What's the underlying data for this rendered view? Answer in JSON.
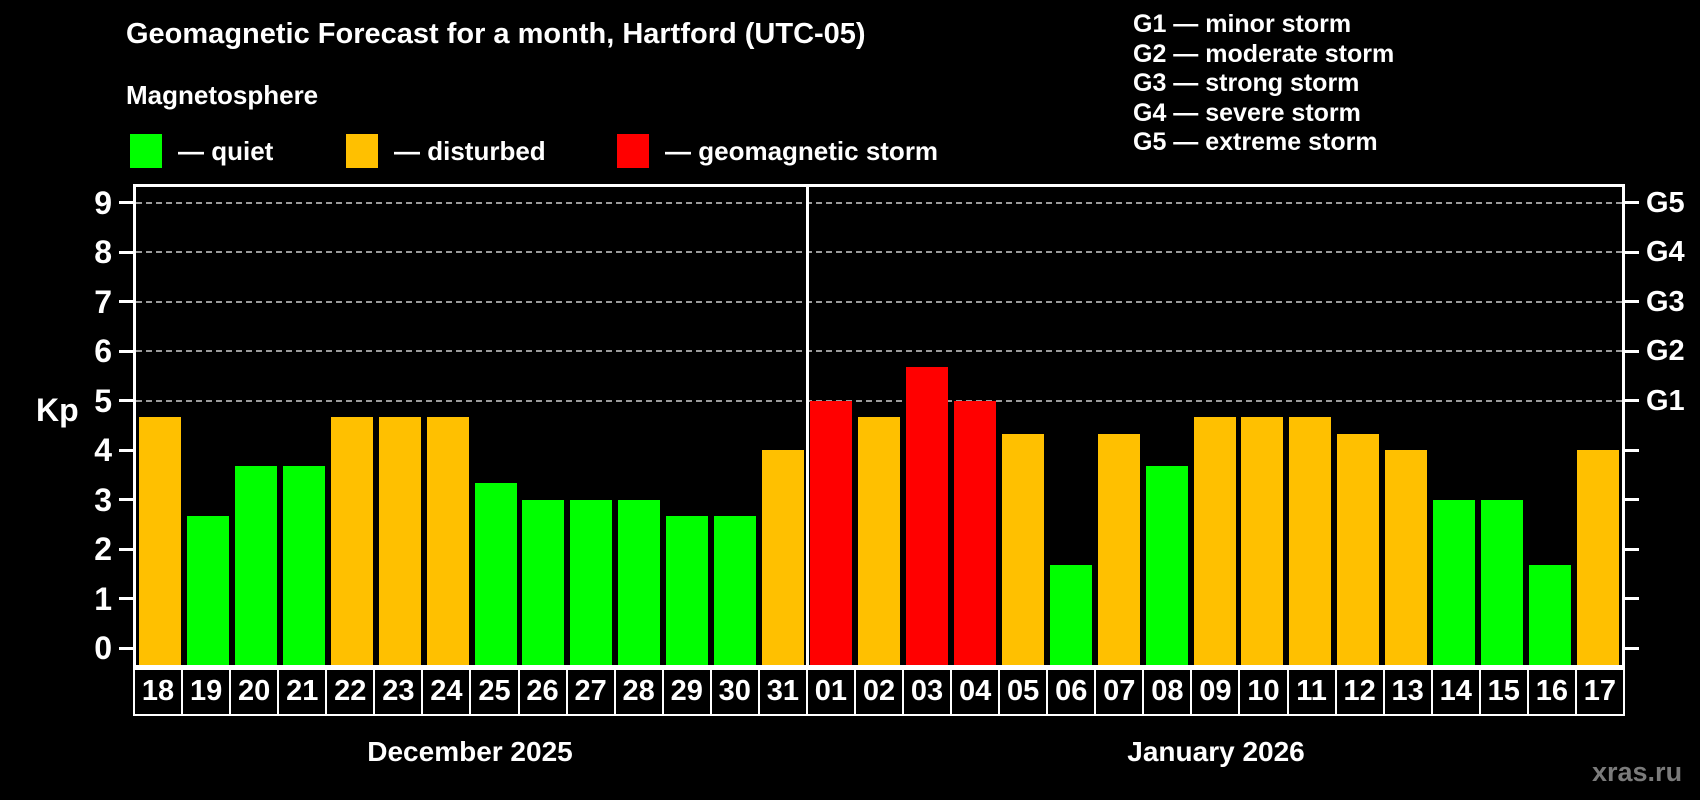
{
  "title": "Geomagnetic Forecast for a month, Hartford (UTC-05)",
  "subtitle": "Magnetosphere",
  "legend": {
    "quiet": "— quiet",
    "disturbed": "— disturbed",
    "storm": "— geomagnetic storm"
  },
  "storm_scale": [
    "G1 — minor storm",
    "G2 — moderate storm",
    "G3 — strong storm",
    "G4 — severe storm",
    "G5 — extreme storm"
  ],
  "colors": {
    "quiet": "#00ff00",
    "disturbed": "#ffc000",
    "storm": "#ff0000",
    "grid": "#9c9c9c",
    "axis": "#ffffff",
    "watermark": "#7b7b7b"
  },
  "axis": {
    "kp_label": "Kp",
    "left_ticks": [
      0,
      1,
      2,
      3,
      4,
      5,
      6,
      7,
      8,
      9
    ],
    "grid_kp": [
      5,
      6,
      7,
      8,
      9
    ],
    "right_labels": [
      {
        "kp": 5,
        "label": "G1"
      },
      {
        "kp": 6,
        "label": "G2"
      },
      {
        "kp": 7,
        "label": "G3"
      },
      {
        "kp": 8,
        "label": "G4"
      },
      {
        "kp": 9,
        "label": "G5"
      }
    ]
  },
  "months": [
    {
      "label": "December 2025",
      "days": 14
    },
    {
      "label": "January 2026",
      "days": 17
    }
  ],
  "watermark": "xras.ru",
  "chart_data": {
    "type": "bar",
    "title": "Geomagnetic Forecast for a month, Hartford (UTC-05)",
    "xlabel": "",
    "ylabel": "Kp",
    "ylim": [
      0,
      9
    ],
    "grid": "dashed horizontal at Kp 5-9",
    "legend_position": "top-left",
    "month_split": 14,
    "categories": [
      "18",
      "19",
      "20",
      "21",
      "22",
      "23",
      "24",
      "25",
      "26",
      "27",
      "28",
      "29",
      "30",
      "31",
      "01",
      "02",
      "03",
      "04",
      "05",
      "06",
      "07",
      "08",
      "09",
      "10",
      "11",
      "12",
      "13",
      "14",
      "15",
      "16",
      "17"
    ],
    "bars": [
      {
        "date": "18",
        "month": "December 2025",
        "kp": 4.67,
        "level": "disturbed"
      },
      {
        "date": "19",
        "month": "December 2025",
        "kp": 2.67,
        "level": "quiet"
      },
      {
        "date": "20",
        "month": "December 2025",
        "kp": 3.67,
        "level": "quiet"
      },
      {
        "date": "21",
        "month": "December 2025",
        "kp": 3.67,
        "level": "quiet"
      },
      {
        "date": "22",
        "month": "December 2025",
        "kp": 4.67,
        "level": "disturbed"
      },
      {
        "date": "23",
        "month": "December 2025",
        "kp": 4.67,
        "level": "disturbed"
      },
      {
        "date": "24",
        "month": "December 2025",
        "kp": 4.67,
        "level": "disturbed"
      },
      {
        "date": "25",
        "month": "December 2025",
        "kp": 3.33,
        "level": "quiet"
      },
      {
        "date": "26",
        "month": "December 2025",
        "kp": 3.0,
        "level": "quiet"
      },
      {
        "date": "27",
        "month": "December 2025",
        "kp": 3.0,
        "level": "quiet"
      },
      {
        "date": "28",
        "month": "December 2025",
        "kp": 3.0,
        "level": "quiet"
      },
      {
        "date": "29",
        "month": "December 2025",
        "kp": 2.67,
        "level": "quiet"
      },
      {
        "date": "30",
        "month": "December 2025",
        "kp": 2.67,
        "level": "quiet"
      },
      {
        "date": "31",
        "month": "December 2025",
        "kp": 4.0,
        "level": "disturbed"
      },
      {
        "date": "01",
        "month": "January 2026",
        "kp": 5.0,
        "level": "storm"
      },
      {
        "date": "02",
        "month": "January 2026",
        "kp": 4.67,
        "level": "disturbed"
      },
      {
        "date": "03",
        "month": "January 2026",
        "kp": 5.67,
        "level": "storm"
      },
      {
        "date": "04",
        "month": "January 2026",
        "kp": 5.0,
        "level": "storm"
      },
      {
        "date": "05",
        "month": "January 2026",
        "kp": 4.33,
        "level": "disturbed"
      },
      {
        "date": "06",
        "month": "January 2026",
        "kp": 1.67,
        "level": "quiet"
      },
      {
        "date": "07",
        "month": "January 2026",
        "kp": 4.33,
        "level": "disturbed"
      },
      {
        "date": "08",
        "month": "January 2026",
        "kp": 3.67,
        "level": "quiet"
      },
      {
        "date": "09",
        "month": "January 2026",
        "kp": 4.67,
        "level": "disturbed"
      },
      {
        "date": "10",
        "month": "January 2026",
        "kp": 4.67,
        "level": "disturbed"
      },
      {
        "date": "11",
        "month": "January 2026",
        "kp": 4.67,
        "level": "disturbed"
      },
      {
        "date": "12",
        "month": "January 2026",
        "kp": 4.33,
        "level": "disturbed"
      },
      {
        "date": "13",
        "month": "January 2026",
        "kp": 4.0,
        "level": "disturbed"
      },
      {
        "date": "14",
        "month": "January 2026",
        "kp": 3.0,
        "level": "quiet"
      },
      {
        "date": "15",
        "month": "January 2026",
        "kp": 3.0,
        "level": "quiet"
      },
      {
        "date": "16",
        "month": "January 2026",
        "kp": 1.67,
        "level": "quiet"
      },
      {
        "date": "17",
        "month": "January 2026",
        "kp": 4.0,
        "level": "disturbed"
      }
    ]
  }
}
